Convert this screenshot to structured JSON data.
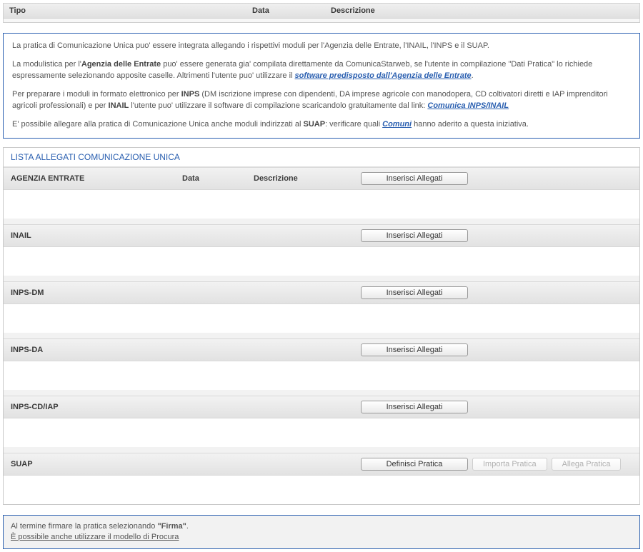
{
  "header": {
    "tipo": "Tipo",
    "data": "Data",
    "descrizione": "Descrizione"
  },
  "info": {
    "p1": "La pratica di Comunicazione Unica puo' essere integrata allegando i rispettivi moduli per l'Agenzia delle Entrate, l'INAIL, l'INPS e il SUAP.",
    "p2_a": "La modulistica per l'",
    "p2_b_strong": "Agenzia delle Entrate",
    "p2_c": " puo' essere generata gia' compilata direttamente da ComunicaStarweb, se l'utente in compilazione \"Dati Pratica\" lo richiede espressamente selezionando apposite caselle. Altrimenti l'utente puo' utilizzare il ",
    "p2_link": "software predisposto dall'Agenzia delle Entrate",
    "p2_d": ".",
    "p3_a": "Per preparare i moduli in formato elettronico per ",
    "p3_b_strong": "INPS",
    "p3_c": " (DM iscrizione imprese con dipendenti, DA imprese agricole con manodopera, CD coltivatori diretti e IAP imprenditori agricoli professionali) e per ",
    "p3_d_strong": "INAIL",
    "p3_e": " l'utente puo' utilizzare il software di compilazione scaricandolo gratuitamente dal link: ",
    "p3_link": "Comunica INPS/INAIL",
    "p4_a": "E' possibile allegare alla pratica di Comunicazione Unica anche moduli indirizzati al ",
    "p4_b_strong": "SUAP",
    "p4_c": ": verificare quali ",
    "p4_link": "Comuni",
    "p4_d": " hanno aderito a questa iniziativa."
  },
  "panel": {
    "title": "LISTA ALLEGATI COMUNICAZIONE UNICA",
    "col_data": "Data",
    "col_desc": "Descrizione",
    "btn_inserisci": "Inserisci Allegati",
    "btn_definisci": "Definisci Pratica",
    "btn_importa": "Importa Pratica",
    "btn_allega": "Allega Pratica",
    "rows": {
      "agenzia": "AGENZIA ENTRATE",
      "inail": "INAIL",
      "inps_dm": "INPS-DM",
      "inps_da": "INPS-DA",
      "inps_cd": "INPS-CD/IAP",
      "suap": "SUAP"
    }
  },
  "footer": {
    "line1_a": "Al termine firmare la pratica selezionando ",
    "line1_b_strong": "\"Firma\"",
    "line1_c": ".",
    "line2": "È possibile anche utilizzare il modello di Procura"
  }
}
